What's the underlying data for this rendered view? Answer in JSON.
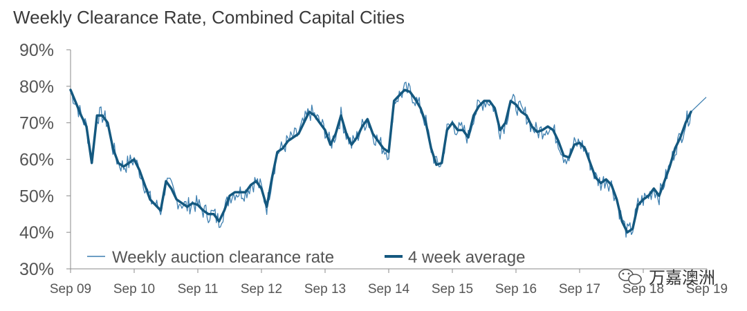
{
  "chart_data": {
    "type": "line",
    "title": "Weekly Clearance Rate, Combined Capital Cities",
    "xlabel": "",
    "ylabel": "",
    "ylim": [
      0.3,
      0.9
    ],
    "y_ticks": [
      "30%",
      "40%",
      "50%",
      "60%",
      "70%",
      "80%",
      "90%"
    ],
    "x_ticks": [
      "Sep 09",
      "Sep 10",
      "Sep 11",
      "Sep 12",
      "Sep 13",
      "Sep 14",
      "Sep 15",
      "Sep 16",
      "Sep 17",
      "Sep 18",
      "Sep 19"
    ],
    "grid": false,
    "legend": "bottom-left, inside plot",
    "series": [
      {
        "name": "Weekly auction clearance rate",
        "color": "#3d7fb0",
        "style": "thin"
      },
      {
        "name": "4 week average",
        "color": "#14587f",
        "style": "thick",
        "points": [
          [
            "Sep 09",
            0.79
          ],
          [
            "Oct 09",
            0.755
          ],
          [
            "Nov 09",
            0.72
          ],
          [
            "Dec 09",
            0.69
          ],
          [
            "Jan 10",
            0.59
          ],
          [
            "Feb 10",
            0.72
          ],
          [
            "Mar 10",
            0.72
          ],
          [
            "Apr 10",
            0.7
          ],
          [
            "May 10",
            0.63
          ],
          [
            "Jun 10",
            0.59
          ],
          [
            "Jul 10",
            0.58
          ],
          [
            "Aug 10",
            0.59
          ],
          [
            "Sep 10",
            0.6
          ],
          [
            "Oct 10",
            0.57
          ],
          [
            "Nov 10",
            0.53
          ],
          [
            "Dec 10",
            0.49
          ],
          [
            "Jan 11",
            0.475
          ],
          [
            "Feb 11",
            0.46
          ],
          [
            "Mar 11",
            0.54
          ],
          [
            "Apr 11",
            0.52
          ],
          [
            "May 11",
            0.49
          ],
          [
            "Jun 11",
            0.48
          ],
          [
            "Jul 11",
            0.47
          ],
          [
            "Aug 11",
            0.48
          ],
          [
            "Sep 11",
            0.475
          ],
          [
            "Oct 11",
            0.46
          ],
          [
            "Nov 11",
            0.45
          ],
          [
            "Dec 11",
            0.45
          ],
          [
            "Jan 12",
            0.43
          ],
          [
            "Feb 12",
            0.46
          ],
          [
            "Mar 12",
            0.5
          ],
          [
            "Apr 12",
            0.51
          ],
          [
            "May 12",
            0.51
          ],
          [
            "Jun 12",
            0.51
          ],
          [
            "Jul 12",
            0.53
          ],
          [
            "Aug 12",
            0.54
          ],
          [
            "Sep 12",
            0.52
          ],
          [
            "Oct 12",
            0.47
          ],
          [
            "Nov 12",
            0.55
          ],
          [
            "Dec 12",
            0.62
          ],
          [
            "Jan 13",
            0.63
          ],
          [
            "Feb 13",
            0.65
          ],
          [
            "Mar 13",
            0.66
          ],
          [
            "Apr 13",
            0.67
          ],
          [
            "May 13",
            0.7
          ],
          [
            "Jun 13",
            0.73
          ],
          [
            "Jul 13",
            0.72
          ],
          [
            "Aug 13",
            0.7
          ],
          [
            "Sep 13",
            0.68
          ],
          [
            "Oct 13",
            0.64
          ],
          [
            "Nov 13",
            0.67
          ],
          [
            "Dec 13",
            0.72
          ],
          [
            "Jan 14",
            0.67
          ],
          [
            "Feb 14",
            0.64
          ],
          [
            "Mar 14",
            0.66
          ],
          [
            "Apr 14",
            0.69
          ],
          [
            "May 14",
            0.71
          ],
          [
            "Jun 14",
            0.67
          ],
          [
            "Jul 14",
            0.65
          ],
          [
            "Aug 14",
            0.63
          ],
          [
            "Sep 14",
            0.62
          ],
          [
            "Oct 14",
            0.76
          ],
          [
            "Nov 14",
            0.775
          ],
          [
            "Dec 14",
            0.79
          ],
          [
            "Jan 15",
            0.785
          ],
          [
            "Feb 15",
            0.765
          ],
          [
            "Mar 15",
            0.74
          ],
          [
            "Apr 15",
            0.7
          ],
          [
            "May 15",
            0.63
          ],
          [
            "Jun 15",
            0.585
          ],
          [
            "Jul 15",
            0.59
          ],
          [
            "Aug 15",
            0.68
          ],
          [
            "Sep 15",
            0.7
          ],
          [
            "Oct 15",
            0.68
          ],
          [
            "Nov 15",
            0.68
          ],
          [
            "Dec 15",
            0.66
          ],
          [
            "Jan 16",
            0.72
          ],
          [
            "Feb 16",
            0.745
          ],
          [
            "Mar 16",
            0.76
          ],
          [
            "Apr 16",
            0.76
          ],
          [
            "May 16",
            0.74
          ],
          [
            "Jun 16",
            0.68
          ],
          [
            "Jul 16",
            0.7
          ],
          [
            "Aug 16",
            0.76
          ],
          [
            "Sep 16",
            0.75
          ],
          [
            "Oct 16",
            0.73
          ],
          [
            "Nov 16",
            0.72
          ],
          [
            "Dec 16",
            0.69
          ],
          [
            "Jan 17",
            0.675
          ],
          [
            "Feb 17",
            0.68
          ],
          [
            "Mar 17",
            0.69
          ],
          [
            "Apr 17",
            0.68
          ],
          [
            "May 17",
            0.65
          ],
          [
            "Jun 17",
            0.61
          ],
          [
            "Jul 17",
            0.605
          ],
          [
            "Aug 17",
            0.64
          ],
          [
            "Sep 17",
            0.645
          ],
          [
            "Oct 17",
            0.63
          ],
          [
            "Nov 17",
            0.59
          ],
          [
            "Dec 17",
            0.55
          ],
          [
            "Jan 18",
            0.535
          ],
          [
            "Feb 18",
            0.545
          ],
          [
            "Mar 18",
            0.53
          ],
          [
            "Apr 18",
            0.49
          ],
          [
            "May 18",
            0.43
          ],
          [
            "Jun 18",
            0.4
          ],
          [
            "Jul 18",
            0.41
          ],
          [
            "Aug 18",
            0.475
          ],
          [
            "Sep 18",
            0.49
          ],
          [
            "Oct 18",
            0.5
          ],
          [
            "Nov 18",
            0.52
          ],
          [
            "Dec 18",
            0.5
          ],
          [
            "Jan 19",
            0.54
          ],
          [
            "Feb 19",
            0.58
          ],
          [
            "Mar 19",
            0.63
          ],
          [
            "Apr 19",
            0.66
          ],
          [
            "May 19",
            0.7
          ],
          [
            "Jun 19",
            0.73
          ]
        ]
      }
    ]
  },
  "watermark": {
    "text": "万嘉澳洲"
  }
}
